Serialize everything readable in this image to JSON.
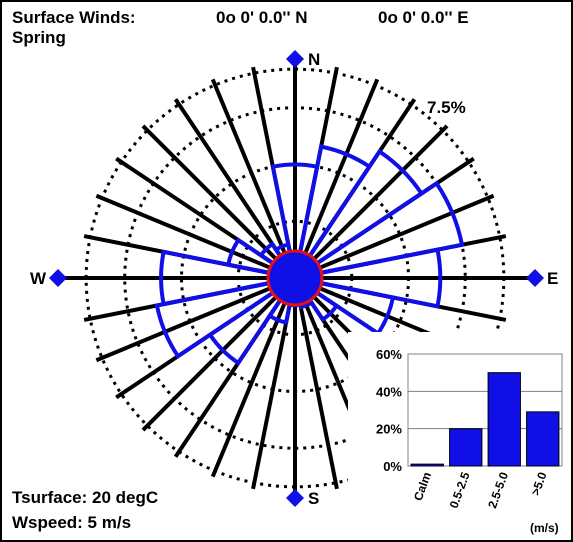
{
  "header": {
    "title": "Surface Winds:",
    "latitude": "0o  0'  0.0'' N",
    "longitude": "0o  0'  0.0'' E",
    "season": "Spring"
  },
  "footer": {
    "tsurface": "Tsurface:  20 degC",
    "wspeed": "Wspeed:  5 m/s"
  },
  "colors": {
    "rose_outline": "#1010e6",
    "calm_fill": "#1010e6",
    "calm_ring": "#e61010",
    "spokes": "#000000",
    "compass_marker": "#1010e6",
    "inset_bar": "#1010e6"
  },
  "chart_data": [
    {
      "type": "polar-bar",
      "subtype": "wind-rose",
      "ring_label": "7.5%",
      "ring_step_percent": 2.5,
      "rings_percent": [
        2.5,
        5.0,
        7.5
      ],
      "compass": [
        "N",
        "E",
        "S",
        "W"
      ],
      "sector_width_deg": 22.5,
      "directions_deg": [
        0,
        22.5,
        45,
        67.5,
        90,
        112.5,
        135,
        157.5,
        180,
        202.5,
        225,
        247.5,
        270,
        292.5,
        315,
        337.5
      ],
      "frequency_percent": [
        5.0,
        5.9,
        6.7,
        7.5,
        6.4,
        4.4,
        2.2,
        1.3,
        1.2,
        2.0,
        4.5,
        6.2,
        5.9,
        3.0,
        1.8,
        1.5
      ]
    },
    {
      "type": "bar",
      "categories": [
        "Calm",
        "0.5-2.5",
        "2.5-5.0",
        ">5.0"
      ],
      "values": [
        1,
        20,
        50,
        29
      ],
      "ylim": [
        0,
        60
      ],
      "yticks": [
        "0%",
        "20%",
        "40%",
        "60%"
      ],
      "xlabel": "(m/s)"
    }
  ]
}
